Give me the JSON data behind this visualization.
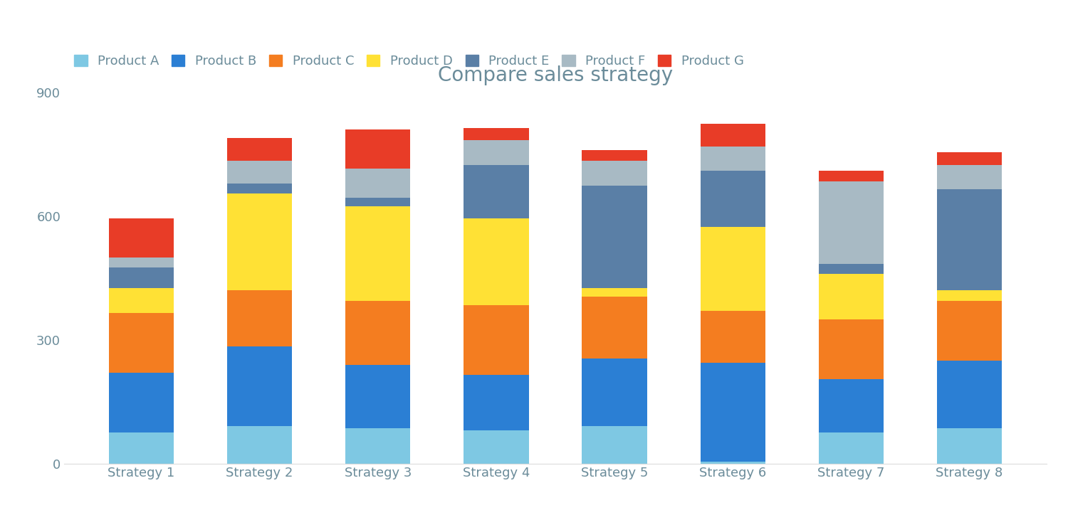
{
  "title": "Compare sales strategy",
  "categories": [
    "Strategy 1",
    "Strategy 2",
    "Strategy 3",
    "Strategy 4",
    "Strategy 5",
    "Strategy 6",
    "Strategy 7",
    "Strategy 8"
  ],
  "products": [
    "Product A",
    "Product B",
    "Product C",
    "Product D",
    "Product E",
    "Product F",
    "Product G"
  ],
  "colors": [
    "#7EC8E3",
    "#2B7FD4",
    "#F47D20",
    "#FFE135",
    "#5A7FA6",
    "#A8BAC4",
    "#E83C27"
  ],
  "values": {
    "Product A": [
      75,
      90,
      85,
      80,
      90,
      5,
      75,
      85
    ],
    "Product B": [
      145,
      195,
      155,
      135,
      165,
      240,
      130,
      165
    ],
    "Product C": [
      145,
      135,
      155,
      170,
      150,
      125,
      145,
      145
    ],
    "Product D": [
      60,
      235,
      230,
      210,
      20,
      205,
      110,
      25
    ],
    "Product E": [
      50,
      25,
      20,
      130,
      250,
      135,
      25,
      245
    ],
    "Product F": [
      25,
      55,
      70,
      60,
      60,
      60,
      200,
      60
    ],
    "Product G": [
      95,
      55,
      95,
      30,
      25,
      55,
      25,
      30
    ]
  },
  "ylim": [
    0,
    900
  ],
  "yticks": [
    0,
    300,
    600,
    900
  ],
  "background_color": "#FFFFFF",
  "title_fontsize": 20,
  "title_color": "#6B8C9A",
  "legend_fontsize": 13,
  "tick_fontsize": 13,
  "bar_width": 0.55
}
